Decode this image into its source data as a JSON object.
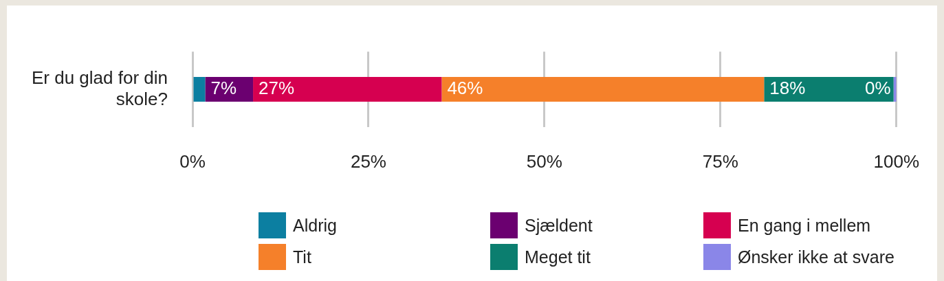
{
  "chart_data": {
    "type": "bar",
    "orientation": "horizontal",
    "stacked": true,
    "categories": [
      "Er du glad for din skole?"
    ],
    "series": [
      {
        "name": "Aldrig",
        "color": "#0c7fa1",
        "values": [
          1.8
        ],
        "value_labels": [
          null
        ]
      },
      {
        "name": "Sjældent",
        "color": "#6b0070",
        "values": [
          6.8
        ],
        "value_labels": [
          "7%"
        ]
      },
      {
        "name": "En gang i mellem",
        "color": "#d60050",
        "values": [
          26.8
        ],
        "value_labels": [
          "27%"
        ]
      },
      {
        "name": "Tit",
        "color": "#f5802a",
        "values": [
          45.8
        ],
        "value_labels": [
          "46%"
        ]
      },
      {
        "name": "Meget tit",
        "color": "#0b7e6f",
        "values": [
          18.4
        ],
        "value_labels": [
          "18%"
        ]
      },
      {
        "name": "Ønsker ikke at svare",
        "color": "#8a86e8",
        "values": [
          0.4
        ],
        "value_labels": [
          "0%"
        ]
      }
    ],
    "xlim": [
      0,
      100
    ],
    "xticks": [
      {
        "value": 0,
        "label": "0%"
      },
      {
        "value": 25,
        "label": "25%"
      },
      {
        "value": 50,
        "label": "50%"
      },
      {
        "value": 75,
        "label": "75%"
      },
      {
        "value": 100,
        "label": "100%"
      }
    ],
    "grid": "x",
    "legend": "bottom"
  }
}
